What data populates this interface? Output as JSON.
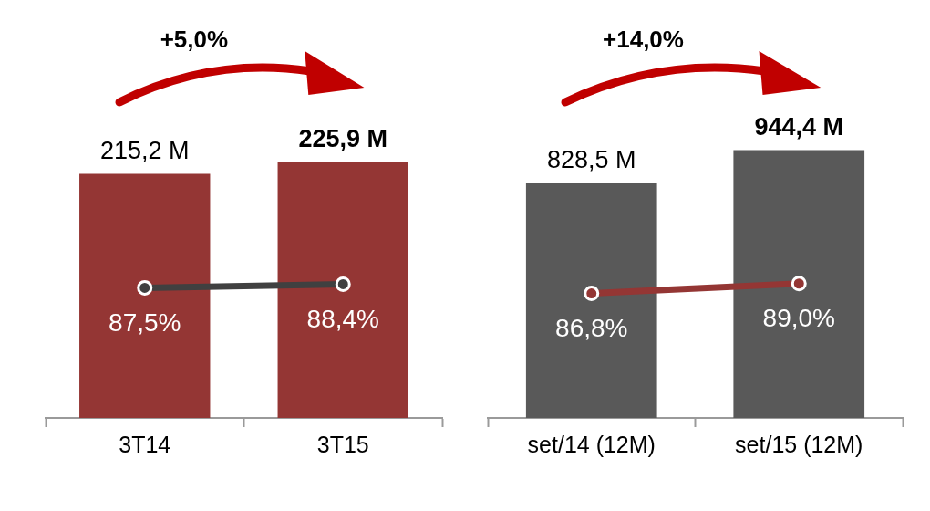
{
  "chart_data": [
    {
      "type": "bar",
      "annotation": "+5,0%",
      "categories": [
        "3T14",
        "3T15"
      ],
      "series": [
        {
          "type": "bar",
          "color": "#943634",
          "values": [
            215.2,
            225.9
          ],
          "value_labels": [
            "215,2 M",
            "225,9 M"
          ]
        },
        {
          "type": "line",
          "color": "#404040",
          "marker": "circle",
          "axis": "y2",
          "values": [
            87.5,
            88.4
          ],
          "value_labels": [
            "87,5%",
            "88,4%"
          ]
        }
      ],
      "ylim": [
        0,
        300
      ],
      "yticks": [
        0,
        300
      ],
      "y2lim": [
        55,
        140
      ],
      "y2ticks": [
        55,
        140
      ],
      "grid": false,
      "data_labels": true,
      "tick_labels": "x"
    },
    {
      "type": "bar",
      "annotation": "+14,0%",
      "categories": [
        "set/14 (12M)",
        "set/15 (12M)"
      ],
      "series": [
        {
          "type": "bar",
          "color": "#595959",
          "values": [
            828.5,
            944.4
          ],
          "value_labels": [
            "828,5 M",
            "944,4 M"
          ]
        },
        {
          "type": "line",
          "color": "#943634",
          "marker": "circle",
          "axis": "y2",
          "values": [
            86.8,
            89.0
          ],
          "value_labels": [
            "86,8%",
            "89,0%"
          ]
        }
      ],
      "ylim": [
        0,
        1200
      ],
      "yticks": [
        0,
        1200
      ],
      "y2lim": [
        59,
        135
      ],
      "y2ticks": [
        59,
        135
      ],
      "grid": false,
      "data_labels": true,
      "tick_labels": "x"
    }
  ]
}
